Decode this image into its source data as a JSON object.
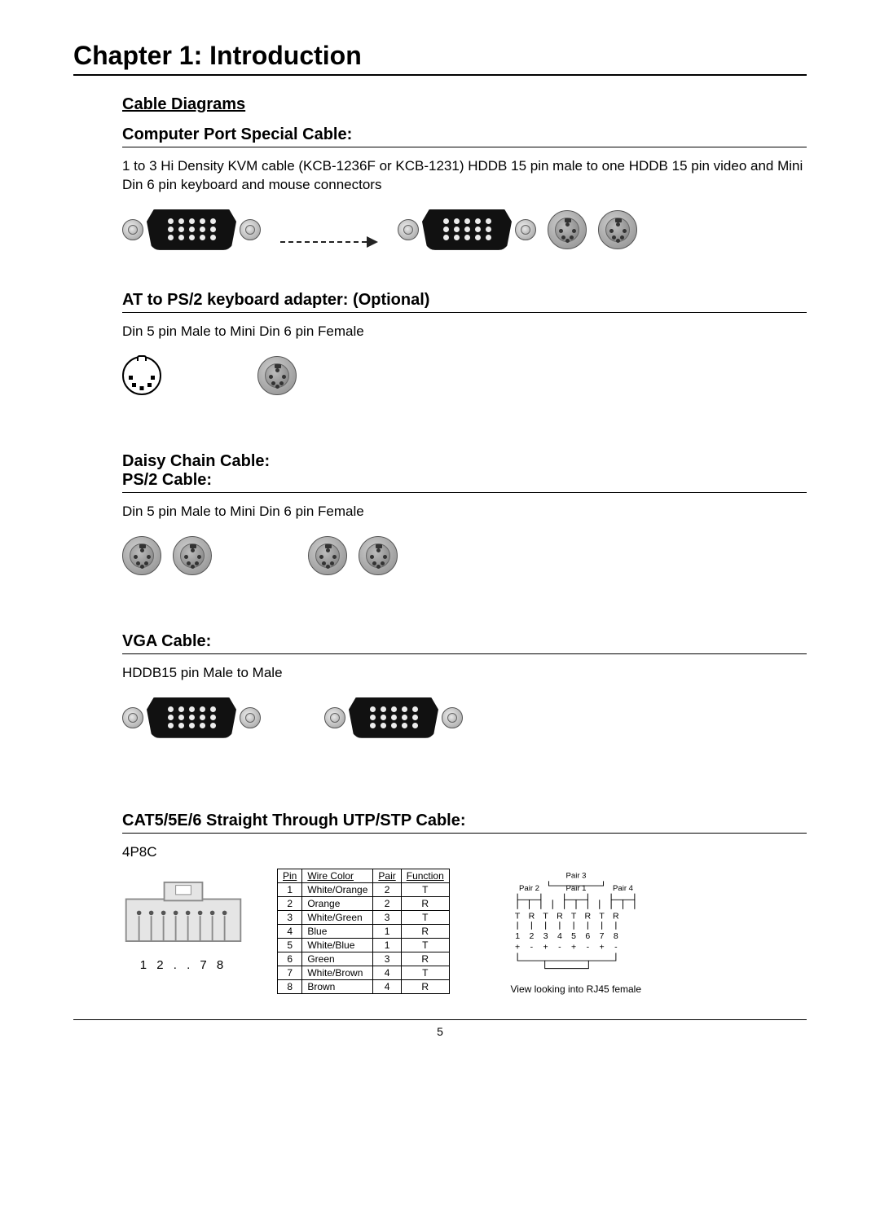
{
  "chapter_title": "Chapter 1: Introduction",
  "page_number": "5",
  "cable_diagrams_heading": "Cable Diagrams",
  "sections": {
    "computer_port": {
      "heading": "Computer Port Special Cable:",
      "description": "1 to 3 Hi Density KVM cable (KCB-1236F or KCB-1231) HDDB 15 pin male to one HDDB 15 pin video and Mini Din 6 pin keyboard and mouse connectors",
      "diagram": {
        "left": {
          "type": "hddb15",
          "pins_rows": [
            5,
            5,
            5
          ],
          "screw_color": "#9a9a9a",
          "shell_color": "#111111"
        },
        "arrow": {
          "style": "dashed",
          "color": "#222222"
        },
        "right": [
          {
            "type": "hddb15",
            "pins_rows": [
              5,
              5,
              5
            ]
          },
          {
            "type": "minidin6",
            "color": "#8b8b8b"
          },
          {
            "type": "minidin6",
            "color": "#8b8b8b"
          }
        ]
      }
    },
    "at_ps2": {
      "heading": "AT to PS/2 keyboard adapter: (Optional)",
      "description": "Din 5 pin Male to Mini Din 6 pin Female",
      "diagram": {
        "left": {
          "type": "din5",
          "outline_color": "#000000"
        },
        "right": {
          "type": "minidin6",
          "color": "#8b8b8b"
        }
      }
    },
    "daisy_ps2": {
      "heading_line1": "Daisy Chain Cable:",
      "heading_line2": "PS/2 Cable:",
      "description": "Din 5 pin Male to Mini Din 6 pin Female",
      "diagram": {
        "group_a": [
          {
            "type": "minidin6"
          },
          {
            "type": "minidin6"
          }
        ],
        "group_b": [
          {
            "type": "minidin6"
          },
          {
            "type": "minidin6"
          }
        ]
      }
    },
    "vga": {
      "heading": "VGA Cable:",
      "description": "HDDB15 pin Male to Male",
      "diagram": {
        "left": {
          "type": "hddb15"
        },
        "right": {
          "type": "hddb15"
        }
      }
    },
    "cat5": {
      "heading": "CAT5/5E/6 Straight Through UTP/STP Cable:",
      "description": "4P8C",
      "rj45_label": "1 2 . . 7 8",
      "pinout": {
        "columns": [
          "Pin",
          "Wire Color",
          "Pair",
          "Function"
        ],
        "rows": [
          [
            "1",
            "White/Orange",
            "2",
            "T"
          ],
          [
            "2",
            "Orange",
            "2",
            "R"
          ],
          [
            "3",
            "White/Green",
            "3",
            "T"
          ],
          [
            "4",
            "Blue",
            "1",
            "R"
          ],
          [
            "5",
            "White/Blue",
            "1",
            "T"
          ],
          [
            "6",
            "Green",
            "3",
            "R"
          ],
          [
            "7",
            "White/Brown",
            "4",
            "T"
          ],
          [
            "8",
            "Brown",
            "4",
            "R"
          ]
        ]
      },
      "pair_diagram": {
        "pair_labels": [
          "Pair 2",
          "Pair 3",
          "Pair 1",
          "Pair 4"
        ],
        "tr_row": [
          "T",
          "R",
          "T",
          "R",
          "T",
          "R",
          "T",
          "R"
        ],
        "num_row": [
          "1",
          "2",
          "3",
          "4",
          "5",
          "6",
          "7",
          "8"
        ],
        "polarity_row": [
          "+",
          "-",
          "+",
          "-",
          "+",
          "-",
          "+",
          "-"
        ],
        "caption": "View looking into RJ45 female"
      },
      "colors": {
        "border": "#000000",
        "text": "#000000",
        "rj_body": "#e5e5e5",
        "rj_outline": "#8a8a8a"
      }
    }
  }
}
